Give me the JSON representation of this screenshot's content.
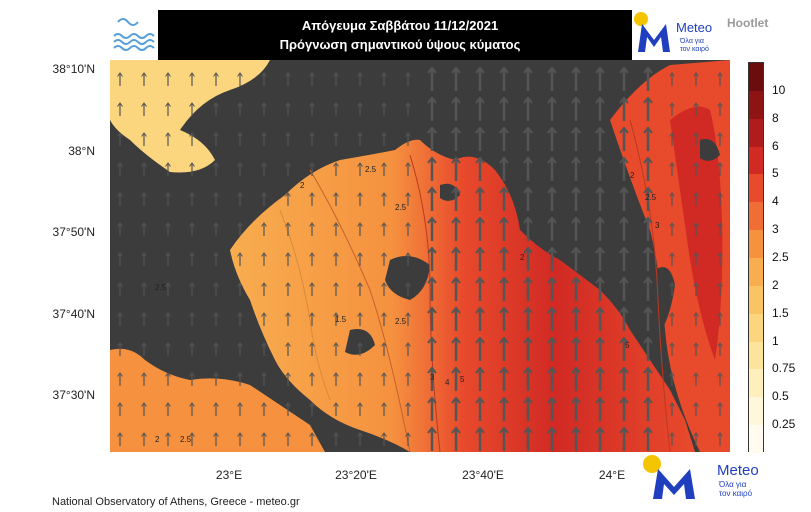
{
  "header": {
    "title_line1": "Απόγευμα Σαββάτου 11/12/2021",
    "title_line2": "Πρόγνωση σημαντικού ύψους κύματος"
  },
  "brand": {
    "name": "Meteo",
    "tagline_line1": "Όλα για",
    "tagline_line2": "τον καιρό",
    "hootlet": "Hootlet",
    "colors": {
      "blue": "#1f3fbf",
      "yellow": "#f5c400"
    }
  },
  "axes": {
    "lat_labels": [
      "38°10'N",
      "38°N",
      "37°50'N",
      "37°40'N",
      "37°30'N"
    ],
    "lon_labels": [
      "23°E",
      "23°20'E",
      "23°40'E",
      "24°E"
    ]
  },
  "colorbar": {
    "labels": [
      "10",
      "8",
      "6",
      "5",
      "4",
      "3",
      "2.5",
      "2",
      "1.5",
      "1",
      "0.75",
      "0.5",
      "0.25"
    ],
    "colors": [
      "#6b0d0d",
      "#8e1414",
      "#b01c1c",
      "#d12a24",
      "#e84a2c",
      "#f06e35",
      "#f5913f",
      "#f8ad4f",
      "#fac465",
      "#fbd67f",
      "#fde49c",
      "#feefbd",
      "#fff7dc",
      "#fffbee"
    ]
  },
  "map": {
    "contour_labels": [
      "2.5",
      "2",
      "2.5",
      "1.5",
      "2.5",
      "2",
      "2.5",
      "3",
      "4",
      "5",
      "5",
      "2",
      "2.5",
      "3",
      "2",
      "2.5"
    ],
    "colors": {
      "land": "#3c3c3c",
      "arrow": "#555555"
    }
  },
  "footer": {
    "credit": "National Observatory of Athens, Greece - meteo.gr"
  }
}
